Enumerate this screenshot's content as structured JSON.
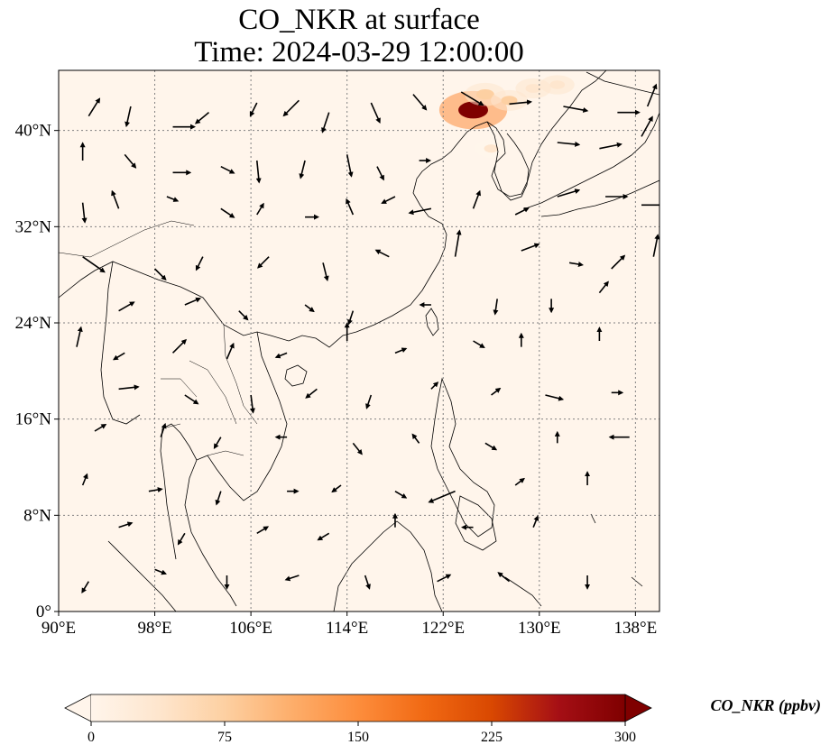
{
  "title": {
    "line1": "CO_NKR at surface",
    "line2": "Time: 2024-03-29 12:00:00"
  },
  "map": {
    "lon_range": [
      90,
      140
    ],
    "lat_range": [
      0,
      45
    ],
    "lon_ticks": [
      {
        "value": 90,
        "label": "90°E"
      },
      {
        "value": 98,
        "label": "98°E"
      },
      {
        "value": 106,
        "label": "106°E"
      },
      {
        "value": 114,
        "label": "114°E"
      },
      {
        "value": 122,
        "label": "122°E"
      },
      {
        "value": 130,
        "label": "130°E"
      },
      {
        "value": 138,
        "label": "138°E"
      }
    ],
    "lat_ticks": [
      {
        "value": 0,
        "label": "0°"
      },
      {
        "value": 8,
        "label": "8°N"
      },
      {
        "value": 16,
        "label": "16°N"
      },
      {
        "value": 24,
        "label": "24°N"
      },
      {
        "value": 32,
        "label": "32°N"
      },
      {
        "value": 40,
        "label": "40°N"
      }
    ],
    "background_color": "#fff5eb",
    "gridline_color": "#808080",
    "coastline_color": "#000000",
    "hotspots": [
      {
        "lon": 124.5,
        "lat": 41.7,
        "value": 290
      },
      {
        "lon": 125.5,
        "lat": 43.0,
        "value": 90
      },
      {
        "lon": 127.5,
        "lat": 42.5,
        "value": 60
      },
      {
        "lon": 129.5,
        "lat": 43.5,
        "value": 50
      },
      {
        "lon": 126.0,
        "lat": 38.5,
        "value": 30
      },
      {
        "lon": 131.5,
        "lat": 43.8,
        "value": 40
      }
    ],
    "wind_vectors": [
      {
        "lon": 92.5,
        "lat": 41.2,
        "u": 0.5,
        "v": 0.8
      },
      {
        "lon": 96.0,
        "lat": 42.0,
        "u": -0.2,
        "v": -0.9
      },
      {
        "lon": 99.5,
        "lat": 40.3,
        "u": 1.0,
        "v": 0.0
      },
      {
        "lon": 102.5,
        "lat": 41.5,
        "u": -0.6,
        "v": -0.5
      },
      {
        "lon": 106.5,
        "lat": 42.3,
        "u": -0.3,
        "v": -0.6
      },
      {
        "lon": 110.0,
        "lat": 42.5,
        "u": -0.7,
        "v": -0.7
      },
      {
        "lon": 112.5,
        "lat": 41.5,
        "u": -0.3,
        "v": -0.9
      },
      {
        "lon": 116.0,
        "lat": 42.3,
        "u": 0.4,
        "v": -0.9
      },
      {
        "lon": 119.5,
        "lat": 43.0,
        "u": 0.6,
        "v": -0.7
      },
      {
        "lon": 123.5,
        "lat": 43.2,
        "u": 1.0,
        "v": -0.6
      },
      {
        "lon": 127.5,
        "lat": 42.2,
        "u": 1.0,
        "v": 0.1
      },
      {
        "lon": 132.0,
        "lat": 42.0,
        "u": 1.1,
        "v": -0.2
      },
      {
        "lon": 136.5,
        "lat": 41.5,
        "u": 1.0,
        "v": 0.0
      },
      {
        "lon": 139.0,
        "lat": 42.0,
        "u": 0.4,
        "v": 1.0
      },
      {
        "lon": 92.0,
        "lat": 37.5,
        "u": 0.0,
        "v": 0.8
      },
      {
        "lon": 95.5,
        "lat": 38.0,
        "u": 0.5,
        "v": -0.6
      },
      {
        "lon": 99.5,
        "lat": 36.5,
        "u": 0.8,
        "v": 0.0
      },
      {
        "lon": 103.5,
        "lat": 37.0,
        "u": 0.6,
        "v": -0.3
      },
      {
        "lon": 106.5,
        "lat": 37.5,
        "u": 0.1,
        "v": -1.0
      },
      {
        "lon": 110.5,
        "lat": 37.5,
        "u": -0.2,
        "v": -0.8
      },
      {
        "lon": 114.0,
        "lat": 38.0,
        "u": 0.2,
        "v": -1.0
      },
      {
        "lon": 116.5,
        "lat": 37.0,
        "u": 0.3,
        "v": -0.6
      },
      {
        "lon": 120.0,
        "lat": 37.5,
        "u": 0.5,
        "v": 0.0
      },
      {
        "lon": 131.5,
        "lat": 39.0,
        "u": 1.0,
        "v": -0.1
      },
      {
        "lon": 135.0,
        "lat": 38.5,
        "u": 1.0,
        "v": 0.2
      },
      {
        "lon": 138.5,
        "lat": 39.5,
        "u": 0.5,
        "v": 0.9
      },
      {
        "lon": 92.0,
        "lat": 34.0,
        "u": 0.1,
        "v": -0.9
      },
      {
        "lon": 95.0,
        "lat": 33.5,
        "u": -0.3,
        "v": 0.8
      },
      {
        "lon": 99.0,
        "lat": 34.5,
        "u": 0.5,
        "v": -0.2
      },
      {
        "lon": 103.5,
        "lat": 33.5,
        "u": 0.6,
        "v": -0.4
      },
      {
        "lon": 106.5,
        "lat": 33.0,
        "u": 0.3,
        "v": 0.5
      },
      {
        "lon": 110.5,
        "lat": 32.8,
        "u": 0.6,
        "v": 0.0
      },
      {
        "lon": 114.5,
        "lat": 33.0,
        "u": -0.3,
        "v": 0.7
      },
      {
        "lon": 118.0,
        "lat": 34.5,
        "u": -0.6,
        "v": -0.3
      },
      {
        "lon": 121.0,
        "lat": 33.5,
        "u": -1.0,
        "v": -0.2
      },
      {
        "lon": 124.5,
        "lat": 33.5,
        "u": 0.3,
        "v": 0.8
      },
      {
        "lon": 128.0,
        "lat": 33.0,
        "u": 0.6,
        "v": 0.3
      },
      {
        "lon": 131.5,
        "lat": 34.5,
        "u": 1.0,
        "v": 0.3
      },
      {
        "lon": 135.5,
        "lat": 34.5,
        "u": 1.0,
        "v": 0.0
      },
      {
        "lon": 138.5,
        "lat": 33.8,
        "u": 1.0,
        "v": 0.0
      },
      {
        "lon": 92.0,
        "lat": 29.5,
        "u": 1.0,
        "v": -0.7
      },
      {
        "lon": 98.0,
        "lat": 28.5,
        "u": 0.5,
        "v": -0.5
      },
      {
        "lon": 102.0,
        "lat": 29.5,
        "u": -0.3,
        "v": -0.6
      },
      {
        "lon": 107.5,
        "lat": 29.5,
        "u": -0.5,
        "v": -0.5
      },
      {
        "lon": 112.0,
        "lat": 29.0,
        "u": 0.2,
        "v": -0.8
      },
      {
        "lon": 117.5,
        "lat": 29.5,
        "u": -0.6,
        "v": 0.3
      },
      {
        "lon": 123.0,
        "lat": 29.5,
        "u": 0.2,
        "v": 1.2
      },
      {
        "lon": 128.5,
        "lat": 30.0,
        "u": 0.8,
        "v": 0.3
      },
      {
        "lon": 132.5,
        "lat": 29.0,
        "u": 0.6,
        "v": -0.1
      },
      {
        "lon": 136.0,
        "lat": 28.5,
        "u": 0.6,
        "v": 0.6
      },
      {
        "lon": 139.5,
        "lat": 29.5,
        "u": 0.2,
        "v": 1.0
      },
      {
        "lon": 95.0,
        "lat": 25.0,
        "u": 0.7,
        "v": 0.4
      },
      {
        "lon": 100.5,
        "lat": 25.5,
        "u": 0.7,
        "v": 0.3
      },
      {
        "lon": 105.0,
        "lat": 25.0,
        "u": 0.4,
        "v": -0.4
      },
      {
        "lon": 110.5,
        "lat": 25.5,
        "u": 0.4,
        "v": -0.3
      },
      {
        "lon": 114.5,
        "lat": 25.0,
        "u": -0.2,
        "v": -0.6
      },
      {
        "lon": 121.0,
        "lat": 25.5,
        "u": -0.5,
        "v": 0.0
      },
      {
        "lon": 126.5,
        "lat": 26.0,
        "u": -0.1,
        "v": -0.7
      },
      {
        "lon": 131.0,
        "lat": 26.0,
        "u": 0.0,
        "v": -0.6
      },
      {
        "lon": 135.0,
        "lat": 26.5,
        "u": 0.4,
        "v": 0.5
      },
      {
        "lon": 91.5,
        "lat": 22.0,
        "u": 0.2,
        "v": 0.9
      },
      {
        "lon": 95.5,
        "lat": 21.5,
        "u": -0.5,
        "v": -0.3
      },
      {
        "lon": 99.5,
        "lat": 21.5,
        "u": 0.6,
        "v": 0.6
      },
      {
        "lon": 104.0,
        "lat": 21.0,
        "u": 0.3,
        "v": 0.7
      },
      {
        "lon": 109.0,
        "lat": 21.5,
        "u": -0.5,
        "v": -0.2
      },
      {
        "lon": 114.0,
        "lat": 22.5,
        "u": 0.0,
        "v": 0.8
      },
      {
        "lon": 118.0,
        "lat": 21.5,
        "u": 0.5,
        "v": 0.2
      },
      {
        "lon": 124.5,
        "lat": 22.5,
        "u": 0.5,
        "v": -0.3
      },
      {
        "lon": 128.5,
        "lat": 22.0,
        "u": 0.0,
        "v": 0.6
      },
      {
        "lon": 135.0,
        "lat": 22.5,
        "u": 0.0,
        "v": 0.6
      },
      {
        "lon": 95.0,
        "lat": 18.5,
        "u": 0.9,
        "v": 0.1
      },
      {
        "lon": 100.5,
        "lat": 18.0,
        "u": 0.6,
        "v": -0.4
      },
      {
        "lon": 106.0,
        "lat": 18.0,
        "u": 0.1,
        "v": -0.8
      },
      {
        "lon": 111.5,
        "lat": 18.5,
        "u": -0.5,
        "v": -0.4
      },
      {
        "lon": 116.0,
        "lat": 18.0,
        "u": -0.2,
        "v": -0.6
      },
      {
        "lon": 121.0,
        "lat": 18.5,
        "u": 0.3,
        "v": 0.3
      },
      {
        "lon": 126.0,
        "lat": 18.0,
        "u": 0.4,
        "v": 0.3
      },
      {
        "lon": 130.5,
        "lat": 18.0,
        "u": 0.8,
        "v": -0.2
      },
      {
        "lon": 136.0,
        "lat": 18.2,
        "u": 0.5,
        "v": 0.0
      },
      {
        "lon": 93.0,
        "lat": 15.0,
        "u": 0.5,
        "v": 0.3
      },
      {
        "lon": 98.5,
        "lat": 14.5,
        "u": 0.2,
        "v": 0.6
      },
      {
        "lon": 103.5,
        "lat": 14.5,
        "u": -0.3,
        "v": -0.5
      },
      {
        "lon": 109.0,
        "lat": 14.5,
        "u": -0.5,
        "v": 0.0
      },
      {
        "lon": 114.5,
        "lat": 14.0,
        "u": 0.4,
        "v": -0.5
      },
      {
        "lon": 120.0,
        "lat": 14.0,
        "u": -0.3,
        "v": 0.4
      },
      {
        "lon": 125.5,
        "lat": 14.0,
        "u": 0.5,
        "v": -0.3
      },
      {
        "lon": 131.5,
        "lat": 14.0,
        "u": 0.0,
        "v": 0.5
      },
      {
        "lon": 137.5,
        "lat": 14.5,
        "u": -0.9,
        "v": 0.0
      },
      {
        "lon": 92.0,
        "lat": 10.5,
        "u": 0.2,
        "v": 0.5
      },
      {
        "lon": 97.5,
        "lat": 10.0,
        "u": 0.6,
        "v": 0.1
      },
      {
        "lon": 103.5,
        "lat": 10.0,
        "u": -0.2,
        "v": -0.6
      },
      {
        "lon": 109.0,
        "lat": 10.0,
        "u": 0.5,
        "v": 0.0
      },
      {
        "lon": 113.5,
        "lat": 10.5,
        "u": -0.4,
        "v": -0.3
      },
      {
        "lon": 118.0,
        "lat": 10.0,
        "u": 0.5,
        "v": -0.3
      },
      {
        "lon": 123.0,
        "lat": 10.0,
        "u": -1.2,
        "v": -0.5
      },
      {
        "lon": 128.0,
        "lat": 10.5,
        "u": 0.4,
        "v": 0.3
      },
      {
        "lon": 134.0,
        "lat": 10.5,
        "u": 0.0,
        "v": 0.6
      },
      {
        "lon": 95.0,
        "lat": 7.0,
        "u": 0.6,
        "v": 0.2
      },
      {
        "lon": 100.5,
        "lat": 6.5,
        "u": -0.3,
        "v": -0.5
      },
      {
        "lon": 106.5,
        "lat": 6.5,
        "u": 0.5,
        "v": 0.3
      },
      {
        "lon": 112.5,
        "lat": 6.5,
        "u": -0.5,
        "v": -0.3
      },
      {
        "lon": 118.0,
        "lat": 7.0,
        "u": 0.0,
        "v": 0.6
      },
      {
        "lon": 124.5,
        "lat": 7.0,
        "u": -0.5,
        "v": 0.0
      },
      {
        "lon": 129.5,
        "lat": 7.0,
        "u": 0.2,
        "v": 0.5
      },
      {
        "lon": 92.5,
        "lat": 2.5,
        "u": -0.3,
        "v": -0.5
      },
      {
        "lon": 98.0,
        "lat": 3.5,
        "u": 0.5,
        "v": -0.2
      },
      {
        "lon": 104.0,
        "lat": 3.0,
        "u": 0.0,
        "v": -0.6
      },
      {
        "lon": 110.0,
        "lat": 3.0,
        "u": -0.6,
        "v": -0.2
      },
      {
        "lon": 115.5,
        "lat": 3.0,
        "u": 0.2,
        "v": -0.6
      },
      {
        "lon": 121.5,
        "lat": 2.5,
        "u": 0.6,
        "v": 0.3
      },
      {
        "lon": 127.5,
        "lat": 2.5,
        "u": -0.5,
        "v": 0.4
      },
      {
        "lon": 134.0,
        "lat": 3.0,
        "u": 0.0,
        "v": -0.6
      }
    ]
  },
  "colorbar": {
    "title": "CO_NKR (ppbv)",
    "range": [
      0,
      300
    ],
    "ticks": [
      {
        "value": 0,
        "label": "0"
      },
      {
        "value": 75,
        "label": "75"
      },
      {
        "value": 150,
        "label": "150"
      },
      {
        "value": 225,
        "label": "225"
      },
      {
        "value": 300,
        "label": "300"
      }
    ],
    "colors": [
      "#fff5eb",
      "#fee6ce",
      "#fdd0a2",
      "#fdae6b",
      "#fd8d3c",
      "#f16913",
      "#d94801",
      "#a50f15",
      "#7f0000"
    ],
    "extend": "both"
  }
}
